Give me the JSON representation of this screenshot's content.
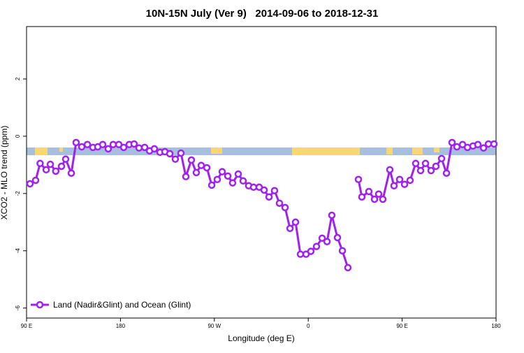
{
  "chart_data": {
    "type": "line",
    "title": "10N-15N July (Ver 9)   2014-09-06 to 2018-12-31",
    "xlabel": "Longitude (deg E)",
    "ylabel": "XCO2 - MLO trend (ppm)",
    "xlim": [
      90,
      540
    ],
    "ylim": [
      -6.35,
      3.83
    ],
    "xticks": [
      {
        "value": 90,
        "label": "90 E"
      },
      180,
      {
        "value": 270,
        "label": "90 W"
      },
      {
        "value": 360,
        "label": "0"
      },
      {
        "value": 450,
        "label": "90 E"
      },
      {
        "value": 540,
        "label": "180"
      }
    ],
    "yticks": [
      -6,
      -4,
      -2,
      0,
      2
    ],
    "legend": "bottom-left",
    "x": [
      93.3,
      98.7,
      103,
      108.8,
      112.8,
      118,
      123.5,
      127.5,
      132.9,
      137.5,
      142.9,
      148.3,
      153.6,
      158.3,
      163,
      168.3,
      173,
      178.4,
      183.1,
      188.4,
      193.1,
      197.8,
      203.2,
      207.9,
      212.5,
      217.9,
      222.6,
      227.3,
      232.6,
      238,
      242.7,
      248,
      252.7,
      257.4,
      262.8,
      267.5,
      272.8,
      277.5,
      282.9,
      287.5,
      292.9,
      297.6,
      302.9,
      307.6,
      313,
      317.7,
      322.4,
      327.7,
      332.4,
      337.8,
      342.5,
      347.8,
      352.5,
      357.9,
      362.5,
      367.9,
      373.3,
      378,
      382.6,
      388,
      392.7,
      398,
      403,
      408.1,
      411.4,
      418.1,
      423.5,
      427.5,
      431.5,
      438.2,
      442.2,
      447.6,
      452.3,
      457.6,
      463,
      467.7,
      472.4,
      477.7,
      482.4,
      487.8,
      492.5,
      497.8,
      502.5,
      507.9,
      512.6,
      517.9,
      522.6,
      528,
      532.7,
      538
    ],
    "series": [
      {
        "name": "Land (Nadir&Glint) and Ocean (Glint)",
        "color": "#a020f0",
        "values": [
          -1.66,
          -1.54,
          -0.95,
          -1.17,
          -0.98,
          -1.22,
          -1.05,
          -0.8,
          -1.29,
          -0.22,
          -0.37,
          -0.29,
          -0.39,
          -0.37,
          -0.29,
          -0.44,
          -0.29,
          -0.29,
          -0.39,
          -0.29,
          -0.27,
          -0.41,
          -0.39,
          -0.51,
          -0.44,
          -0.56,
          -0.54,
          -0.61,
          -0.8,
          -0.59,
          -1.41,
          -0.83,
          -1.27,
          -1.02,
          -1.1,
          -1.71,
          -1.51,
          -1.24,
          -1.39,
          -1.63,
          -1.32,
          -1.56,
          -1.73,
          -1.78,
          -1.78,
          -1.88,
          -2.12,
          -1.9,
          -2.34,
          -2.49,
          -3.22,
          -3.0,
          -4.12,
          -4.12,
          -4.02,
          -3.85,
          -3.56,
          -3.68,
          -2.76,
          -3.54,
          -4.0,
          -4.59,
          null,
          -1.51,
          -2.12,
          -1.93,
          -2.2,
          -2.02,
          -2.2,
          -1.17,
          -1.73,
          -1.51,
          -1.68,
          -1.54,
          -0.95,
          -1.2,
          -0.95,
          -1.2,
          -1.05,
          -0.78,
          -1.29,
          -0.22,
          -0.37,
          -0.29,
          -0.39,
          -0.34,
          -0.29,
          -0.41,
          -0.27,
          -0.27
        ]
      }
    ]
  }
}
